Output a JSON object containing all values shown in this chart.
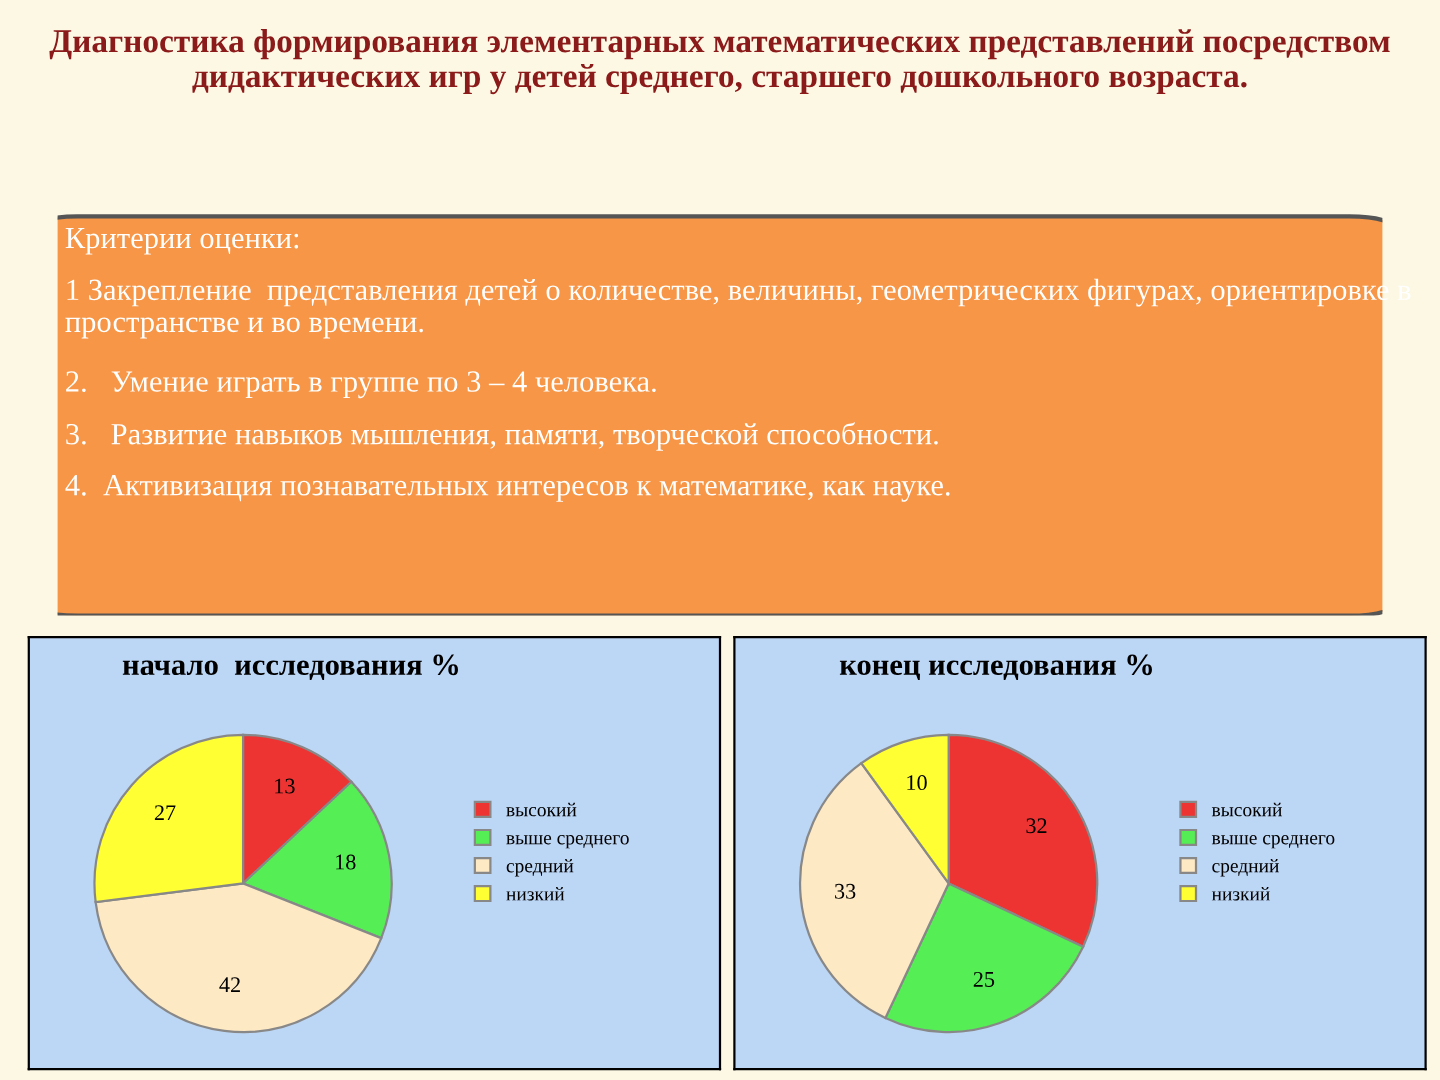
{
  "chart_data": [
    {
      "type": "other",
      "title": "Диагностика формирования элементарных математических представлений посредством дидактических игр у детей среднего, старшего дошкольного возраста.",
      "annotations": [
        "Критерии оценки:",
        "1 Закрепление  представления детей о количестве, величины, геометрических фигурах, ориентировке в пространстве и во времени.",
        "2.   Умение играть в группе по 3 – 4 человека.",
        "3.   Развитие навыков мышления, памяти, творческой способности.",
        "4.  Активизация познавательных интересов к математике, как науке."
      ]
    },
    {
      "type": "pie",
      "title": "начало  исследования %",
      "categories": [
        "высокий",
        "выше среднего",
        "средний",
        "низкий"
      ],
      "values": [
        13,
        18,
        42,
        27
      ],
      "colors": [
        "#ee3333",
        "#55ee55",
        "#fde9c4",
        "#ffff33"
      ],
      "data_labels": true,
      "legend": "right"
    },
    {
      "type": "pie",
      "title": "конец исследования %",
      "categories": [
        "высокий",
        "выше среднего",
        "средний",
        "низкий"
      ],
      "values": [
        32,
        25,
        33,
        10
      ],
      "colors": [
        "#ee3333",
        "#55ee55",
        "#fde9c4",
        "#ffff33"
      ],
      "data_labels": true,
      "legend": "right"
    }
  ]
}
